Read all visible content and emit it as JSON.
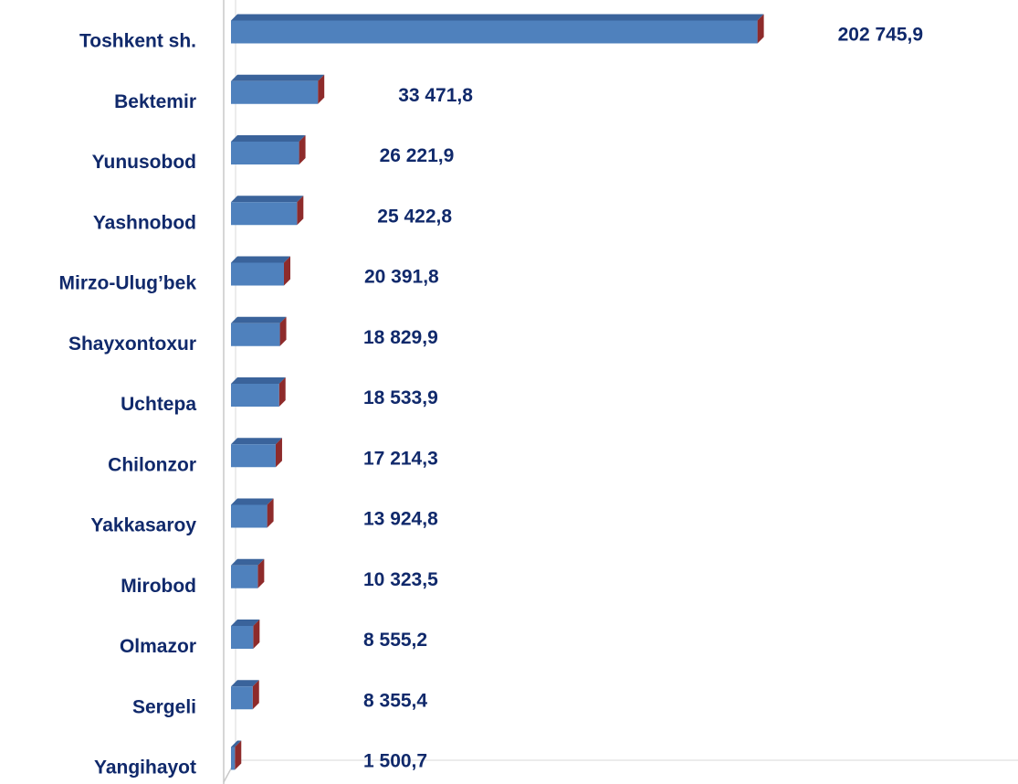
{
  "chart_data": {
    "type": "bar",
    "orientation": "horizontal",
    "categories": [
      "Toshkent sh.",
      "Bektemir",
      "Yunusobod",
      "Yashnobod",
      "Mirzo-Ulug’bek",
      "Shayxontoxur",
      "Uchtepa",
      "Chilonzor",
      "Yakkasaroy",
      "Mirobod",
      "Olmazor",
      "Sergeli",
      "Yangihayot"
    ],
    "values": [
      202745.9,
      33471.8,
      26221.9,
      25422.8,
      20391.8,
      18829.9,
      18533.9,
      17214.3,
      13924.8,
      10323.5,
      8555.2,
      8355.4,
      1500.7
    ],
    "value_labels": [
      "202 745,9",
      "33 471,8",
      "26 221,9",
      "25 422,8",
      "20 391,8",
      "18 829,9",
      "18 533,9",
      "17 214,3",
      "13 924,8",
      "10 323,5",
      "8 555,2",
      "8 355,4",
      "1 500,7"
    ],
    "color": "#4f81bd",
    "xlim": [
      0,
      250000
    ]
  }
}
